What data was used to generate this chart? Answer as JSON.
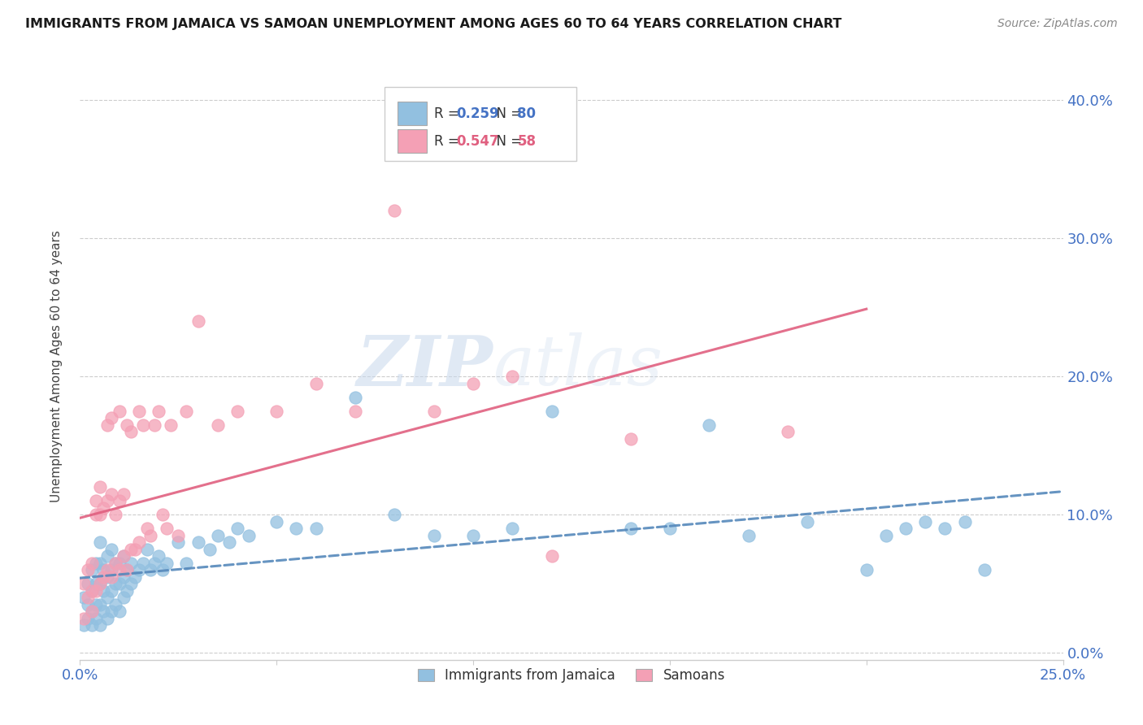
{
  "title": "IMMIGRANTS FROM JAMAICA VS SAMOAN UNEMPLOYMENT AMONG AGES 60 TO 64 YEARS CORRELATION CHART",
  "source": "Source: ZipAtlas.com",
  "ylabel": "Unemployment Among Ages 60 to 64 years",
  "yticks_labels": [
    "0.0%",
    "10.0%",
    "20.0%",
    "30.0%",
    "40.0%"
  ],
  "ytick_vals": [
    0.0,
    0.1,
    0.2,
    0.3,
    0.4
  ],
  "xlim": [
    0.0,
    0.25
  ],
  "ylim": [
    -0.005,
    0.42
  ],
  "jamaica_R": "0.259",
  "jamaica_N": "80",
  "samoan_R": "0.547",
  "samoan_N": "58",
  "legend_label1": "Immigrants from Jamaica",
  "legend_label2": "Samoans",
  "jamaica_color": "#92C0E0",
  "samoan_color": "#F4A0B5",
  "trendline_jamaica_color": "#5588BB",
  "trendline_samoan_color": "#E06080",
  "jamaica_x": [
    0.001,
    0.001,
    0.002,
    0.002,
    0.002,
    0.003,
    0.003,
    0.003,
    0.003,
    0.004,
    0.004,
    0.004,
    0.004,
    0.005,
    0.005,
    0.005,
    0.005,
    0.005,
    0.006,
    0.006,
    0.006,
    0.007,
    0.007,
    0.007,
    0.007,
    0.008,
    0.008,
    0.008,
    0.008,
    0.009,
    0.009,
    0.009,
    0.01,
    0.01,
    0.01,
    0.011,
    0.011,
    0.011,
    0.012,
    0.012,
    0.013,
    0.013,
    0.014,
    0.015,
    0.016,
    0.017,
    0.018,
    0.019,
    0.02,
    0.021,
    0.022,
    0.025,
    0.027,
    0.03,
    0.033,
    0.035,
    0.038,
    0.04,
    0.043,
    0.05,
    0.055,
    0.06,
    0.07,
    0.08,
    0.09,
    0.1,
    0.11,
    0.12,
    0.14,
    0.15,
    0.16,
    0.17,
    0.185,
    0.2,
    0.205,
    0.21,
    0.215,
    0.22,
    0.225,
    0.23
  ],
  "jamaica_y": [
    0.02,
    0.04,
    0.025,
    0.035,
    0.05,
    0.02,
    0.03,
    0.045,
    0.06,
    0.025,
    0.035,
    0.05,
    0.065,
    0.02,
    0.035,
    0.05,
    0.065,
    0.08,
    0.03,
    0.045,
    0.06,
    0.025,
    0.04,
    0.055,
    0.07,
    0.03,
    0.045,
    0.06,
    0.075,
    0.035,
    0.05,
    0.065,
    0.03,
    0.05,
    0.065,
    0.04,
    0.055,
    0.07,
    0.045,
    0.06,
    0.05,
    0.065,
    0.055,
    0.06,
    0.065,
    0.075,
    0.06,
    0.065,
    0.07,
    0.06,
    0.065,
    0.08,
    0.065,
    0.08,
    0.075,
    0.085,
    0.08,
    0.09,
    0.085,
    0.095,
    0.09,
    0.09,
    0.185,
    0.1,
    0.085,
    0.085,
    0.09,
    0.175,
    0.09,
    0.09,
    0.165,
    0.085,
    0.095,
    0.06,
    0.085,
    0.09,
    0.095,
    0.09,
    0.095,
    0.06
  ],
  "samoan_x": [
    0.001,
    0.001,
    0.002,
    0.002,
    0.003,
    0.003,
    0.003,
    0.004,
    0.004,
    0.004,
    0.005,
    0.005,
    0.005,
    0.006,
    0.006,
    0.007,
    0.007,
    0.007,
    0.008,
    0.008,
    0.008,
    0.009,
    0.009,
    0.01,
    0.01,
    0.01,
    0.011,
    0.011,
    0.012,
    0.012,
    0.013,
    0.013,
    0.014,
    0.015,
    0.015,
    0.016,
    0.017,
    0.018,
    0.019,
    0.02,
    0.021,
    0.022,
    0.023,
    0.025,
    0.027,
    0.03,
    0.035,
    0.04,
    0.05,
    0.06,
    0.07,
    0.08,
    0.09,
    0.1,
    0.11,
    0.12,
    0.14,
    0.18
  ],
  "samoan_y": [
    0.025,
    0.05,
    0.04,
    0.06,
    0.03,
    0.045,
    0.065,
    0.045,
    0.1,
    0.11,
    0.05,
    0.1,
    0.12,
    0.055,
    0.105,
    0.06,
    0.11,
    0.165,
    0.055,
    0.115,
    0.17,
    0.065,
    0.1,
    0.06,
    0.11,
    0.175,
    0.07,
    0.115,
    0.06,
    0.165,
    0.075,
    0.16,
    0.075,
    0.08,
    0.175,
    0.165,
    0.09,
    0.085,
    0.165,
    0.175,
    0.1,
    0.09,
    0.165,
    0.085,
    0.175,
    0.24,
    0.165,
    0.175,
    0.175,
    0.195,
    0.175,
    0.32,
    0.175,
    0.195,
    0.2,
    0.07,
    0.155,
    0.16
  ],
  "watermark_zip": "ZIP",
  "watermark_atlas": "atlas",
  "background_color": "#FFFFFF",
  "grid_color": "#CCCCCC"
}
